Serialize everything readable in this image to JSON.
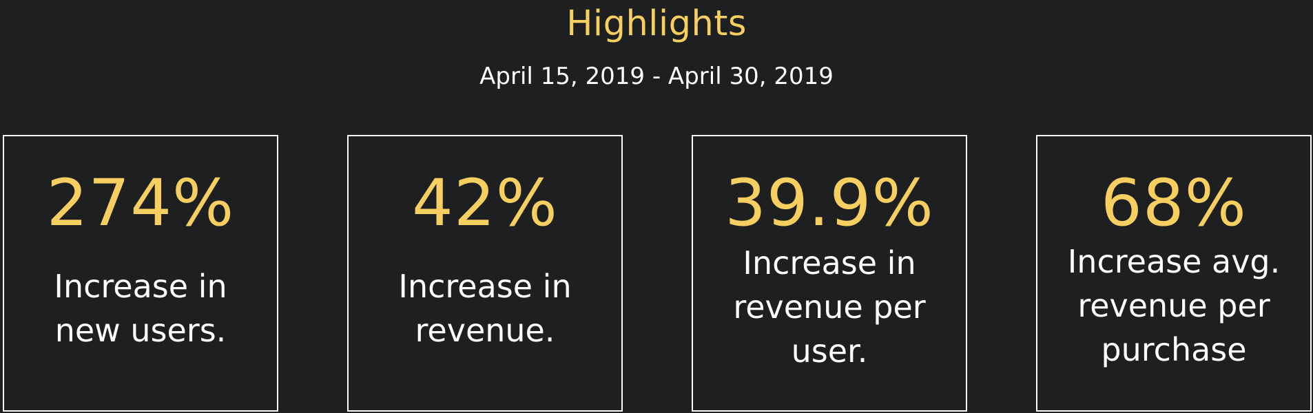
{
  "header": {
    "title": "Highlights",
    "date_range": "April 15, 2019 - April 30, 2019"
  },
  "cards": [
    {
      "value": "274%",
      "label_lines": [
        "Increase in",
        "new users."
      ]
    },
    {
      "value": "42%",
      "label_lines": [
        "Increase in",
        "revenue."
      ]
    },
    {
      "value": "39.9%",
      "label_lines": [
        "Increase in",
        "revenue per",
        "user."
      ]
    },
    {
      "value": "68%",
      "label_lines": [
        "Increase avg.",
        "revenue per",
        "purchase"
      ]
    }
  ],
  "colors": {
    "background": "#1e1f21",
    "accent": "#f6cf60",
    "text": "#ffffff",
    "border": "#ffffff"
  }
}
